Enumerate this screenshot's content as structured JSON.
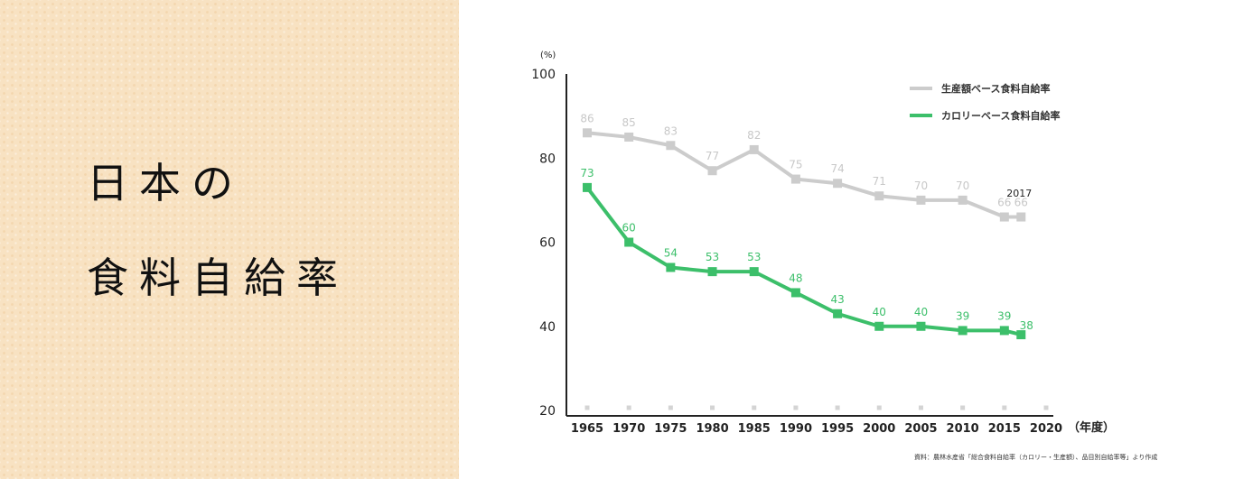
{
  "title_lines": [
    "日本の",
    "食料自給率"
  ],
  "chart_data": {
    "type": "line",
    "ylabel": "(%)",
    "xlabel": "（年度）",
    "ylim": [
      20,
      100
    ],
    "yticks": [
      20,
      40,
      60,
      80,
      100
    ],
    "xlim": [
      1965,
      2020
    ],
    "xticks": [
      1965,
      1970,
      1975,
      1980,
      1985,
      1990,
      1995,
      2000,
      2005,
      2010,
      2015,
      2020
    ],
    "x": [
      1965,
      1970,
      1975,
      1980,
      1985,
      1990,
      1995,
      2000,
      2005,
      2010,
      2015,
      2017
    ],
    "series": [
      {
        "name": "生産額ベース食料自給率",
        "color": "#cccccc",
        "label_color": "#c8c8c8",
        "values": [
          86,
          85,
          83,
          77,
          82,
          75,
          74,
          71,
          70,
          70,
          66,
          66
        ]
      },
      {
        "name": "カロリーベース食料自給率",
        "color": "#3cbf6a",
        "label_color": "#3cbf6a",
        "values": [
          73,
          60,
          54,
          53,
          53,
          48,
          43,
          40,
          40,
          39,
          39,
          38
        ]
      }
    ],
    "annotation": "2017",
    "legend_position": "top-right",
    "grid": false,
    "source": "資料：農林水産省「総合食料自給率（カロリー・生産額）、品目別自給率等」より作成"
  }
}
